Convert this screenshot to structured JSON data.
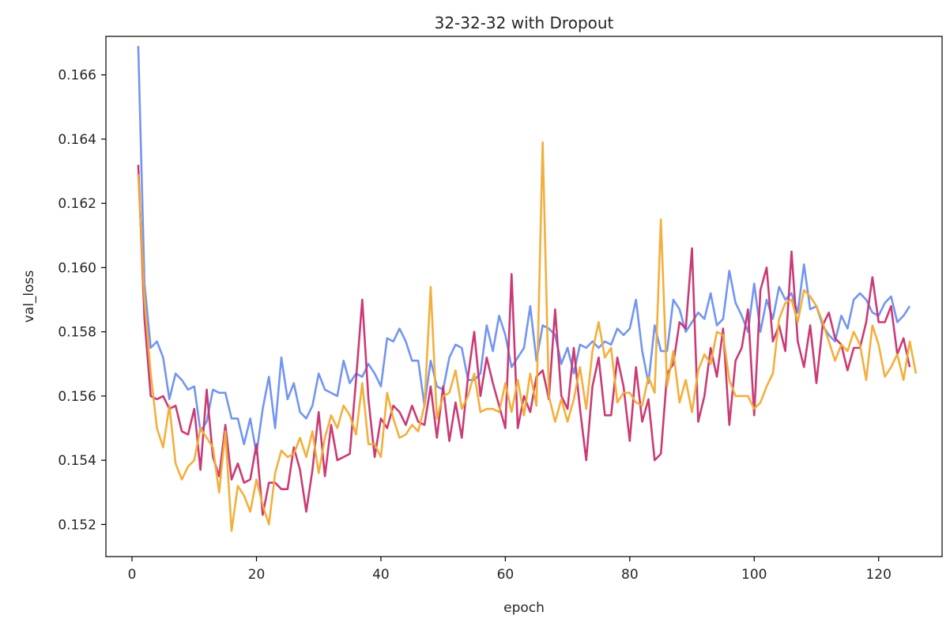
{
  "chart_data": {
    "type": "line",
    "title": "32-32-32 with Dropout",
    "xlabel": "epoch",
    "ylabel": "val_loss",
    "xlim": [
      -4.2,
      130.2
    ],
    "ylim": [
      0.151,
      0.1672
    ],
    "xticks": [
      0,
      20,
      40,
      60,
      80,
      100,
      120
    ],
    "yticks": [
      0.152,
      0.154,
      0.156,
      0.158,
      0.16,
      0.162,
      0.164,
      0.166
    ],
    "ytick_labels": [
      "0.152",
      "0.154",
      "0.156",
      "0.158",
      "0.160",
      "0.162",
      "0.164",
      "0.166"
    ],
    "grid": false,
    "legend": null,
    "series": [
      {
        "color": "#6b8ff0",
        "x_start": 1,
        "values": [
          0.1669,
          0.1595,
          0.1575,
          0.1577,
          0.1572,
          0.1559,
          0.1567,
          0.1565,
          0.1562,
          0.1563,
          0.1549,
          0.1552,
          0.1562,
          0.1561,
          0.1561,
          0.1553,
          0.1553,
          0.1545,
          0.1553,
          0.1542,
          0.1556,
          0.1566,
          0.155,
          0.1572,
          0.1559,
          0.1564,
          0.1555,
          0.1553,
          0.1557,
          0.1567,
          0.1562,
          0.1561,
          0.156,
          0.1571,
          0.1564,
          0.1567,
          0.1566,
          0.157,
          0.1567,
          0.1563,
          0.1578,
          0.1577,
          0.1581,
          0.1577,
          0.1571,
          0.1571,
          0.1557,
          0.1571,
          0.1563,
          0.1562,
          0.1572,
          0.1576,
          0.1575,
          0.1565,
          0.1565,
          0.1567,
          0.1582,
          0.1574,
          0.1585,
          0.1579,
          0.1569,
          0.1572,
          0.1575,
          0.1588,
          0.1571,
          0.1582,
          0.1581,
          0.1579,
          0.157,
          0.1575,
          0.1567,
          0.1576,
          0.1575,
          0.1577,
          0.1575,
          0.1577,
          0.1576,
          0.1581,
          0.1579,
          0.1581,
          0.159,
          0.1574,
          0.1564,
          0.1582,
          0.1574,
          0.1574,
          0.159,
          0.1587,
          0.158,
          0.1583,
          0.1586,
          0.1584,
          0.1592,
          0.1582,
          0.1584,
          0.1599,
          0.1589,
          0.1585,
          0.158,
          0.1595,
          0.158,
          0.159,
          0.1584,
          0.1594,
          0.159,
          0.1592,
          0.1586,
          0.1601,
          0.1587,
          0.1588,
          0.1582,
          0.1579,
          0.1577,
          0.1585,
          0.1581,
          0.159,
          0.1592,
          0.159,
          0.1586,
          0.1585,
          0.1589,
          0.1591,
          0.1583,
          0.1585,
          0.1588
        ]
      },
      {
        "color": "#c7306e",
        "x_start": 1,
        "values": [
          0.1632,
          0.1584,
          0.156,
          0.1559,
          0.156,
          0.1556,
          0.1557,
          0.1549,
          0.1548,
          0.1556,
          0.1537,
          0.1562,
          0.1541,
          0.1535,
          0.1551,
          0.1534,
          0.1539,
          0.1533,
          0.1534,
          0.1545,
          0.1523,
          0.1533,
          0.1533,
          0.1531,
          0.1531,
          0.1544,
          0.1537,
          0.1524,
          0.1537,
          0.1555,
          0.1535,
          0.1551,
          0.154,
          0.1541,
          0.1542,
          0.1565,
          0.159,
          0.1559,
          0.1541,
          0.1553,
          0.155,
          0.1557,
          0.1555,
          0.1551,
          0.1557,
          0.1552,
          0.1551,
          0.1563,
          0.1547,
          0.1563,
          0.1546,
          0.1558,
          0.1547,
          0.1566,
          0.158,
          0.156,
          0.1572,
          0.1564,
          0.1557,
          0.155,
          0.1598,
          0.155,
          0.156,
          0.1555,
          0.1566,
          0.1568,
          0.1559,
          0.1587,
          0.156,
          0.1556,
          0.1575,
          0.1556,
          0.154,
          0.1563,
          0.1572,
          0.1554,
          0.1554,
          0.1572,
          0.1563,
          0.1546,
          0.1569,
          0.1552,
          0.1559,
          0.154,
          0.1542,
          0.1567,
          0.157,
          0.1583,
          0.1581,
          0.1606,
          0.1552,
          0.156,
          0.1575,
          0.1566,
          0.1581,
          0.1551,
          0.1571,
          0.1575,
          0.1587,
          0.1554,
          0.1593,
          0.16,
          0.1577,
          0.1582,
          0.1574,
          0.1605,
          0.1577,
          0.1569,
          0.1582,
          0.1564,
          0.1582,
          0.1586,
          0.1578,
          0.1576,
          0.1568,
          0.1575,
          0.1575,
          0.1583,
          0.1597,
          0.1583,
          0.1583,
          0.1588,
          0.1573,
          0.1578,
          0.1569
        ]
      },
      {
        "color": "#f2ab33",
        "x_start": 1,
        "values": [
          0.1629,
          0.159,
          0.1567,
          0.155,
          0.1544,
          0.1557,
          0.1539,
          0.1534,
          0.1538,
          0.154,
          0.155,
          0.1547,
          0.1544,
          0.153,
          0.1549,
          0.1518,
          0.1532,
          0.1529,
          0.1524,
          0.1534,
          0.1526,
          0.152,
          0.1536,
          0.1543,
          0.1541,
          0.1542,
          0.1547,
          0.1541,
          0.1549,
          0.1536,
          0.1547,
          0.1554,
          0.155,
          0.1557,
          0.1554,
          0.1548,
          0.1564,
          0.1545,
          0.1545,
          0.1541,
          0.1561,
          0.1553,
          0.1547,
          0.1548,
          0.1551,
          0.1549,
          0.1557,
          0.1594,
          0.1553,
          0.156,
          0.1561,
          0.1568,
          0.1556,
          0.156,
          0.1567,
          0.1555,
          0.1556,
          0.1556,
          0.1555,
          0.1564,
          0.1555,
          0.1565,
          0.1554,
          0.1567,
          0.1557,
          0.1639,
          0.156,
          0.1552,
          0.1559,
          0.1552,
          0.1559,
          0.1569,
          0.1556,
          0.1574,
          0.1583,
          0.1572,
          0.1575,
          0.1558,
          0.1561,
          0.1561,
          0.1558,
          0.1557,
          0.1566,
          0.1561,
          0.1615,
          0.1563,
          0.1574,
          0.1558,
          0.1565,
          0.1555,
          0.1568,
          0.1573,
          0.157,
          0.158,
          0.1579,
          0.1565,
          0.156,
          0.156,
          0.156,
          0.1556,
          0.1558,
          0.1563,
          0.1567,
          0.1584,
          0.1589,
          0.159,
          0.1583,
          0.1593,
          0.1591,
          0.1588,
          0.1583,
          0.1577,
          0.1571,
          0.1576,
          0.1574,
          0.158,
          0.1576,
          0.1565,
          0.1582,
          0.1576,
          0.1566,
          0.1569,
          0.1573,
          0.1565,
          0.1577,
          0.1567
        ]
      }
    ]
  }
}
